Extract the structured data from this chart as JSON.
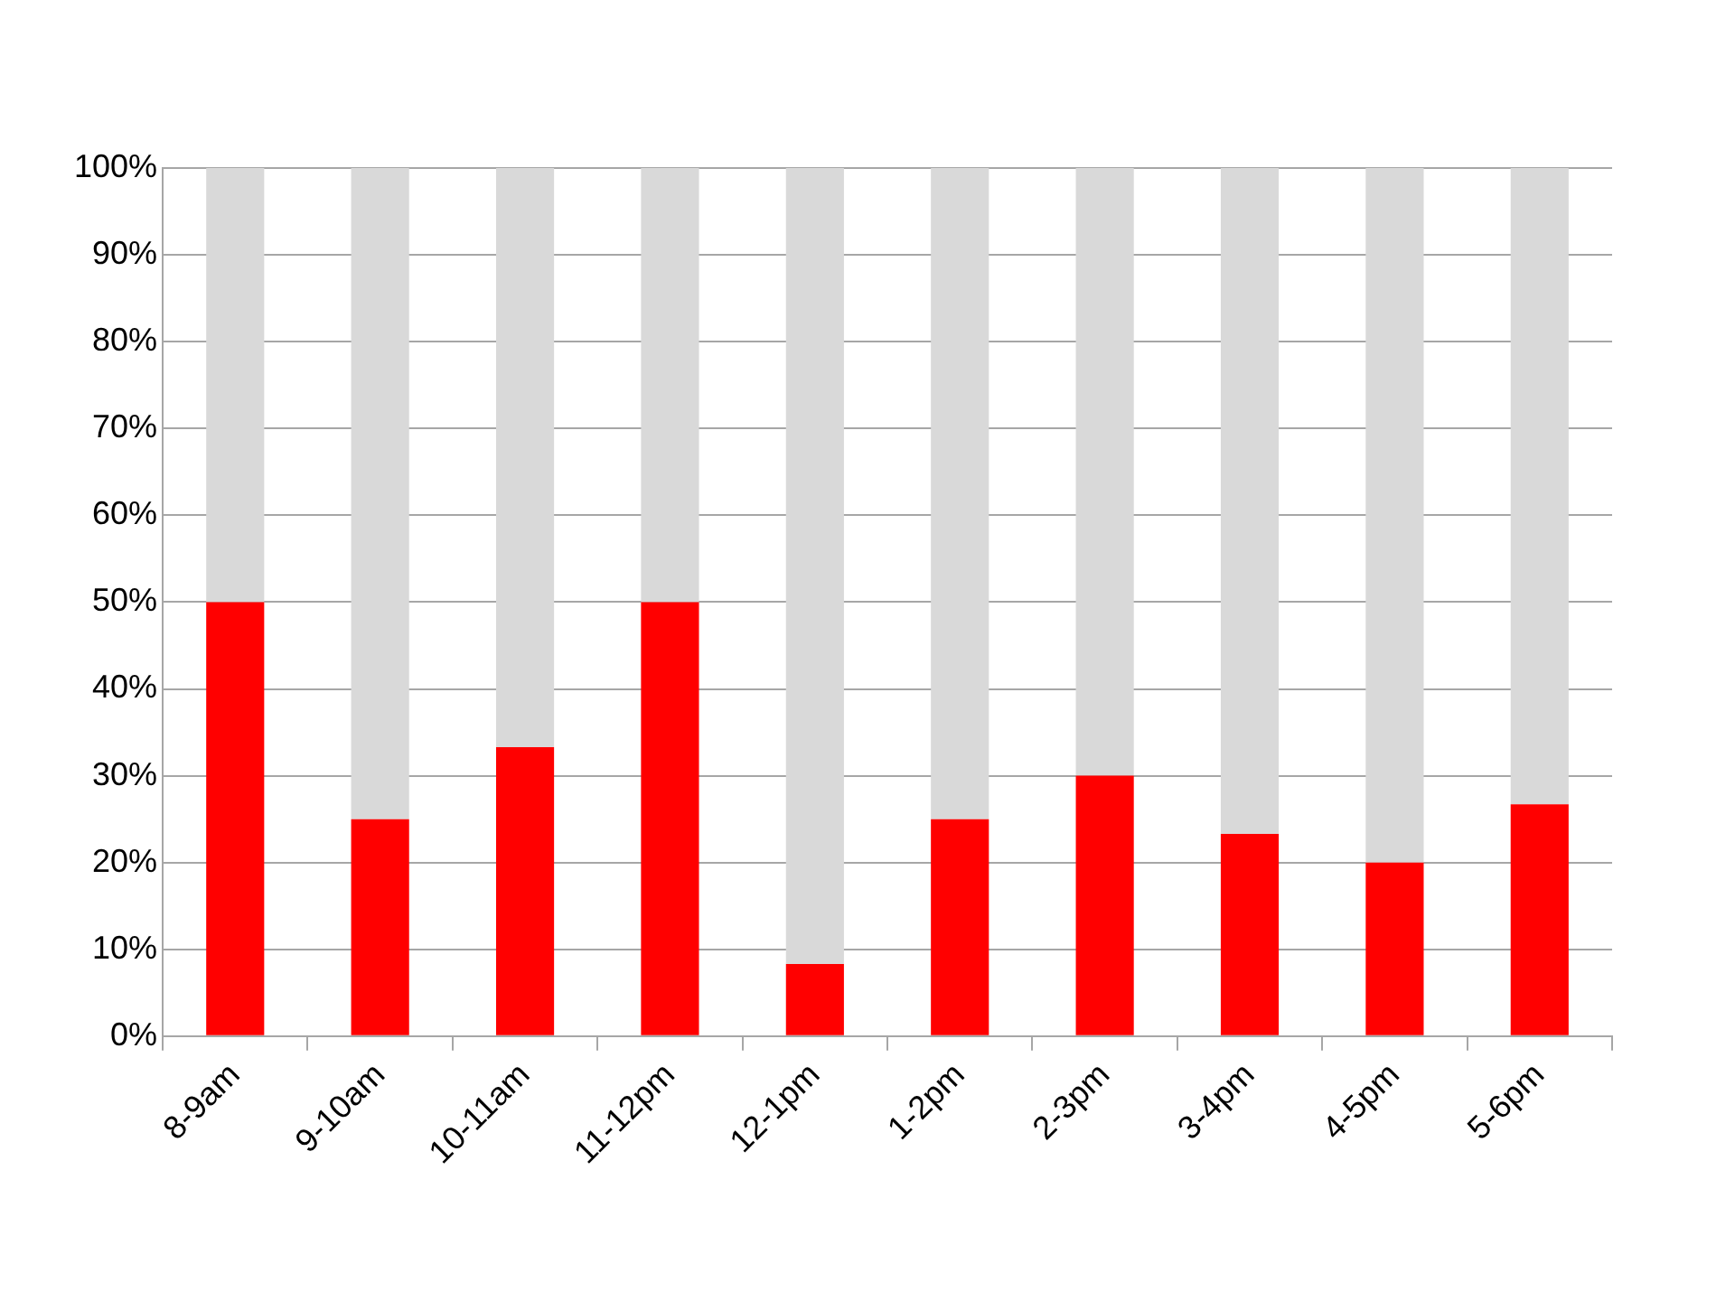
{
  "chart_data": {
    "type": "bar",
    "stacked": true,
    "categories": [
      "8-9am",
      "9-10am",
      "10-11am",
      "11-12pm",
      "12-1pm",
      "1-2pm",
      "2-3pm",
      "3-4pm",
      "4-5pm",
      "5-6pm"
    ],
    "series": [
      {
        "color": "#ff0000",
        "values": [
          50,
          25,
          33.3,
          50,
          8.3,
          25,
          30,
          23.3,
          20,
          26.7
        ]
      },
      {
        "color": "#d9d9d9",
        "values": [
          50,
          75,
          66.7,
          50,
          91.7,
          75,
          70,
          76.7,
          80,
          73.3
        ]
      }
    ],
    "ylim": [
      0,
      100
    ],
    "yticks": [
      {
        "value": 0,
        "label": "0%"
      },
      {
        "value": 10,
        "label": "10%"
      },
      {
        "value": 20,
        "label": "20%"
      },
      {
        "value": 30,
        "label": "30%"
      },
      {
        "value": 40,
        "label": "40%"
      },
      {
        "value": 50,
        "label": "50%"
      },
      {
        "value": 60,
        "label": "60%"
      },
      {
        "value": 70,
        "label": "70%"
      },
      {
        "value": 80,
        "label": "80%"
      },
      {
        "value": 90,
        "label": "90%"
      },
      {
        "value": 100,
        "label": "100%"
      }
    ],
    "grid": "y",
    "legend": false
  }
}
